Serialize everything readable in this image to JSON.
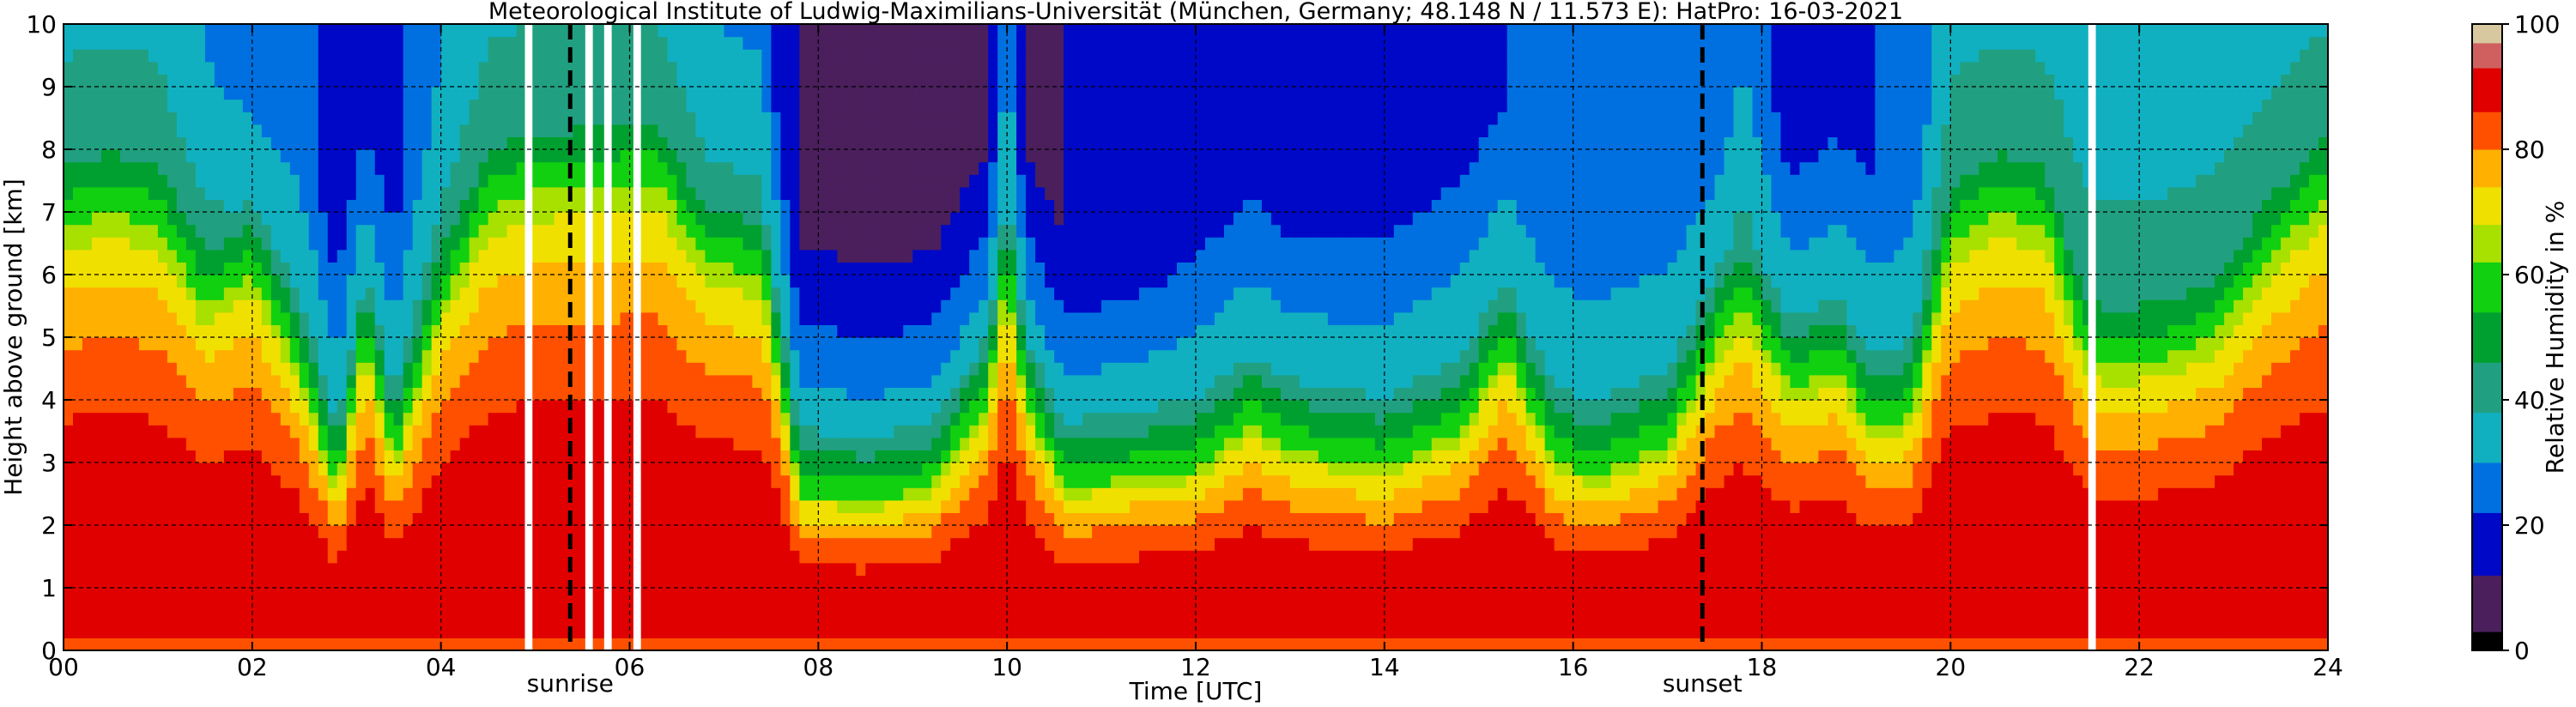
{
  "chart_data": {
    "type": "heatmap",
    "title": "Meteorological Institute of Ludwig-Maximilians-Universität (München, Germany; 48.148 N / 11.573 E):    HatPro: 16-03-2021",
    "xlabel": "Time [UTC]",
    "ylabel": "Height above ground [km]",
    "colorbar_label": "Relative Humidity in %",
    "xlim": [
      0,
      24
    ],
    "ylim": [
      0,
      10
    ],
    "clim": [
      0,
      100
    ],
    "grid": true,
    "x_ticks": [
      0,
      2,
      4,
      6,
      8,
      10,
      12,
      14,
      16,
      18,
      20,
      22,
      24
    ],
    "x_tick_labels": [
      "00",
      "02",
      "04",
      "06",
      "08",
      "10",
      "12",
      "14",
      "16",
      "18",
      "20",
      "22",
      "24"
    ],
    "y_ticks": [
      0,
      1,
      2,
      3,
      4,
      5,
      6,
      7,
      8,
      9,
      10
    ],
    "y_tick_labels": [
      "0",
      "1",
      "2",
      "3",
      "4",
      "5",
      "6",
      "7",
      "8",
      "9",
      "10"
    ],
    "colorbar_ticks": [
      0,
      20,
      40,
      60,
      80,
      100
    ],
    "colorbar_tick_labels": [
      "0",
      "20",
      "40",
      "60",
      "80",
      "100"
    ],
    "colormap": [
      {
        "from": 0,
        "to": 3,
        "color": "#000000"
      },
      {
        "from": 3,
        "to": 12,
        "color": "#4a1f5c"
      },
      {
        "from": 12,
        "to": 22,
        "color": "#0008c8"
      },
      {
        "from": 22,
        "to": 30,
        "color": "#0070e0"
      },
      {
        "from": 30,
        "to": 38,
        "color": "#10b0c0"
      },
      {
        "from": 38,
        "to": 46,
        "color": "#20a080"
      },
      {
        "from": 46,
        "to": 54,
        "color": "#00a030"
      },
      {
        "from": 54,
        "to": 62,
        "color": "#10d010"
      },
      {
        "from": 62,
        "to": 68,
        "color": "#a8e000"
      },
      {
        "from": 68,
        "to": 74,
        "color": "#f0e000"
      },
      {
        "from": 74,
        "to": 80,
        "color": "#ffb000"
      },
      {
        "from": 80,
        "to": 86,
        "color": "#ff5000"
      },
      {
        "from": 86,
        "to": 93,
        "color": "#e00000"
      },
      {
        "from": 93,
        "to": 97,
        "color": "#d06060"
      },
      {
        "from": 97,
        "to": 100,
        "color": "#d8c8a0"
      }
    ],
    "time_profile": {
      "hours": [
        0,
        0.5,
        1.0,
        1.5,
        2.0,
        2.5,
        2.9,
        3.2,
        3.5,
        4.0,
        4.5,
        4.9,
        6.3,
        6.8,
        7.4,
        7.8,
        8.5,
        9.2,
        9.8,
        10.0,
        10.2,
        10.6,
        11.5,
        12.0,
        12.6,
        13.0,
        14.0,
        14.8,
        15.3,
        15.8,
        16.3,
        17.0,
        17.5,
        17.8,
        18.3,
        18.8,
        19.2,
        19.6,
        20.0,
        20.5,
        21.0,
        21.4,
        21.6,
        22.2,
        22.8,
        23.4,
        24.0
      ],
      "moisture_depth_km": [
        6.8,
        7.0,
        6.8,
        5.5,
        6.0,
        4.5,
        2.5,
        5.0,
        3.0,
        5.5,
        7.0,
        7.3,
        7.5,
        6.2,
        6.0,
        2.5,
        2.4,
        2.6,
        4.0,
        6.0,
        4.0,
        2.6,
        2.8,
        2.9,
        3.6,
        3.2,
        2.9,
        3.5,
        4.8,
        3.0,
        2.8,
        3.3,
        4.8,
        5.5,
        4.2,
        4.5,
        3.5,
        3.8,
        6.5,
        7.0,
        6.8,
        4.8,
        4.5,
        4.6,
        5.0,
        6.3,
        7.3
      ],
      "top_rh_percent": [
        35,
        35,
        35,
        30,
        22,
        25,
        18,
        18,
        20,
        30,
        35,
        35,
        35,
        30,
        28,
        12,
        10,
        10,
        12,
        30,
        12,
        12,
        14,
        18,
        20,
        18,
        20,
        22,
        22,
        24,
        24,
        24,
        22,
        30,
        18,
        20,
        22,
        24,
        35,
        35,
        35,
        35,
        35,
        35,
        35,
        35,
        35
      ]
    },
    "missing_data_hours": [
      4.93,
      5.57,
      5.77,
      6.08,
      21.5
    ],
    "event_lines": [
      {
        "hour": 5.37,
        "label": "sunrise"
      },
      {
        "hour": 17.37,
        "label": "sunset"
      }
    ]
  }
}
